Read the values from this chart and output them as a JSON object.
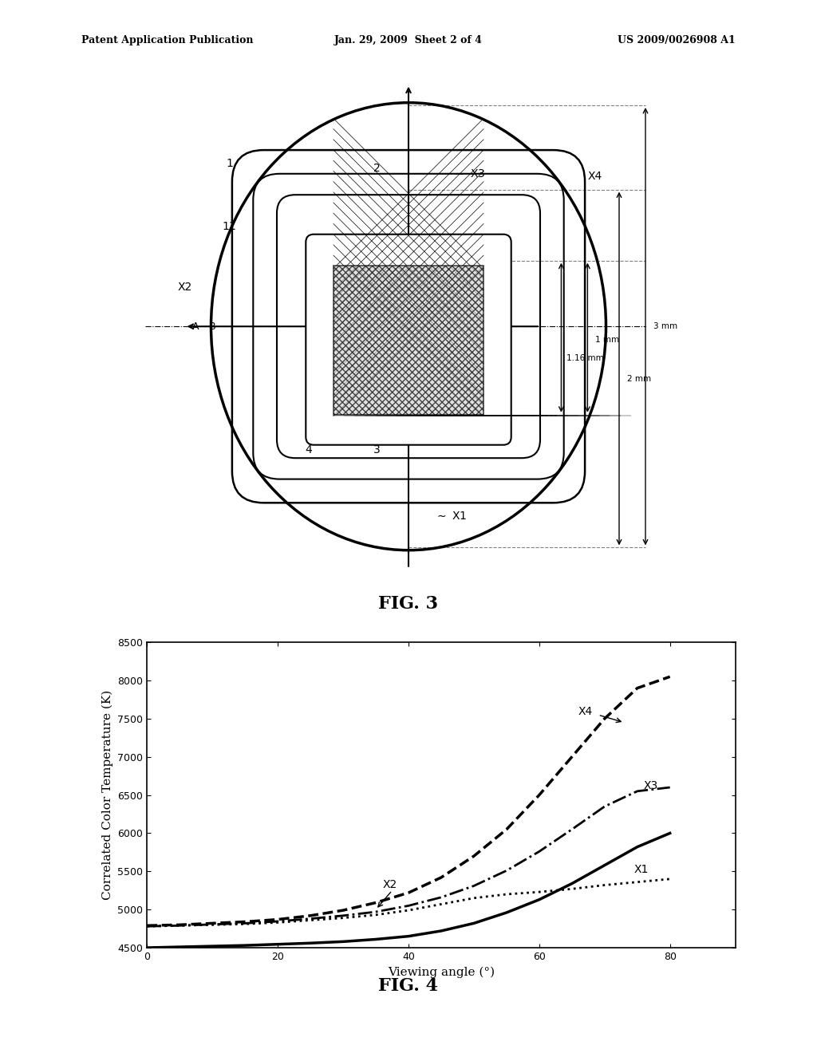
{
  "bg_color": "#ffffff",
  "header_left": "Patent Application Publication",
  "header_center": "Jan. 29, 2009  Sheet 2 of 4",
  "header_right": "US 2009/0026908 A1",
  "fig3_caption": "FIG. 3",
  "fig4_caption": "FIG. 4",
  "fig4_xlabel": "Viewing angle (°)",
  "fig4_ylabel": "Correlated Color Temperature (K)",
  "fig4_xlim": [
    0,
    90
  ],
  "fig4_ylim": [
    4500,
    8500
  ],
  "fig4_xticks": [
    0,
    20,
    40,
    60,
    80
  ],
  "fig4_yticks": [
    4500,
    5000,
    5500,
    6000,
    6500,
    7000,
    7500,
    8000,
    8500
  ],
  "curve_X1_x": [
    0,
    5,
    10,
    15,
    20,
    25,
    30,
    35,
    40,
    45,
    50,
    55,
    60,
    65,
    70,
    75,
    80
  ],
  "curve_X1_y": [
    4500,
    4510,
    4520,
    4530,
    4545,
    4560,
    4580,
    4610,
    4650,
    4720,
    4820,
    4960,
    5130,
    5340,
    5580,
    5820,
    6000
  ],
  "curve_X2_x": [
    0,
    5,
    10,
    15,
    20,
    25,
    30,
    35,
    40,
    45,
    50,
    55,
    60,
    65,
    70,
    75,
    80
  ],
  "curve_X2_y": [
    4780,
    4790,
    4800,
    4810,
    4830,
    4860,
    4890,
    4930,
    4990,
    5070,
    5150,
    5200,
    5230,
    5270,
    5320,
    5360,
    5400
  ],
  "curve_X3_x": [
    0,
    5,
    10,
    15,
    20,
    25,
    30,
    35,
    40,
    45,
    50,
    55,
    60,
    65,
    70,
    75,
    80
  ],
  "curve_X3_y": [
    4780,
    4790,
    4805,
    4820,
    4845,
    4880,
    4920,
    4970,
    5050,
    5160,
    5310,
    5510,
    5760,
    6050,
    6350,
    6550,
    6600
  ],
  "curve_X4_x": [
    0,
    5,
    10,
    15,
    20,
    25,
    30,
    35,
    40,
    45,
    50,
    55,
    60,
    65,
    70,
    75,
    80
  ],
  "curve_X4_y": [
    4790,
    4800,
    4820,
    4840,
    4870,
    4920,
    4990,
    5090,
    5220,
    5420,
    5700,
    6050,
    6500,
    7000,
    7500,
    7900,
    8050
  ]
}
